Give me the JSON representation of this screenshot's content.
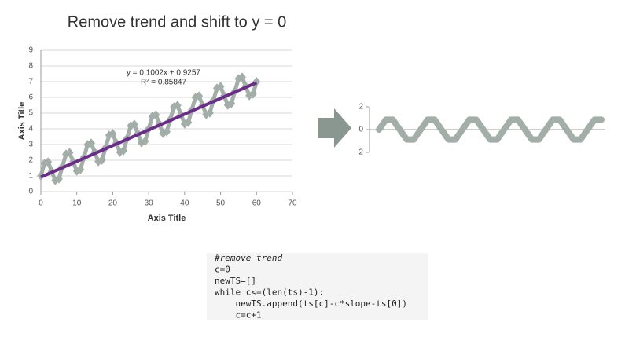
{
  "title": "Remove trend and shift to y = 0",
  "chart_data": [
    {
      "type": "scatter",
      "xlabel": "Axis Title",
      "ylabel": "Axis Title",
      "xlim": [
        0,
        70
      ],
      "ylim": [
        0,
        9
      ],
      "xticks": [
        0,
        10,
        20,
        30,
        40,
        50,
        60,
        70
      ],
      "yticks": [
        0,
        1,
        2,
        3,
        4,
        5,
        6,
        7,
        8,
        9
      ],
      "grid": true,
      "series": [
        {
          "color": "#a3aea8",
          "x": [
            0,
            1,
            2,
            3,
            4,
            5,
            6,
            7,
            8,
            9,
            10,
            11,
            12,
            13,
            14,
            15,
            16,
            17,
            18,
            19,
            20,
            21,
            22,
            23,
            24,
            25,
            26,
            27,
            28,
            29,
            30,
            31,
            32,
            33,
            34,
            35,
            36,
            37,
            38,
            39,
            40,
            41,
            42,
            43,
            44,
            45,
            46,
            47,
            48,
            49,
            50,
            51,
            52,
            53,
            54,
            55,
            56,
            57,
            58,
            59,
            60
          ],
          "values": [
            1.0,
            1.79,
            1.89,
            1.3,
            0.71,
            0.81,
            1.6,
            2.39,
            2.49,
            1.9,
            1.31,
            1.41,
            2.2,
            2.99,
            3.09,
            2.5,
            1.91,
            2.01,
            2.8,
            3.59,
            3.69,
            3.1,
            2.51,
            2.61,
            3.4,
            4.19,
            4.29,
            3.7,
            3.11,
            3.21,
            4.0,
            4.79,
            4.89,
            4.3,
            3.71,
            3.81,
            4.6,
            5.39,
            5.49,
            4.9,
            4.31,
            4.41,
            5.2,
            5.99,
            6.09,
            5.5,
            4.91,
            5.01,
            5.8,
            6.59,
            6.69,
            6.1,
            5.51,
            5.61,
            6.4,
            7.19,
            7.29,
            6.7,
            6.11,
            6.21,
            7.0
          ]
        }
      ],
      "trendline": {
        "slope": 0.1002,
        "intercept": 0.9257,
        "color": "#6a2d8a",
        "equation": "y = 0.1002x + 0.9257",
        "r2": "R² = 0.85847"
      }
    },
    {
      "type": "line",
      "xlim": [
        0,
        32
      ],
      "ylim": [
        -2,
        2
      ],
      "yticks": [
        -2,
        0,
        2
      ],
      "series": [
        {
          "color": "#a3aea8",
          "x": [
            0,
            1,
            2,
            3,
            4,
            5,
            6,
            7,
            8,
            9,
            10,
            11,
            12,
            13,
            14,
            15,
            16,
            17,
            18,
            19,
            20,
            21,
            22,
            23,
            24,
            25,
            26,
            27,
            28,
            29,
            30,
            31,
            32
          ],
          "values": [
            0,
            0.87,
            0.87,
            0,
            -0.87,
            -0.87,
            0,
            0.87,
            0.87,
            0,
            -0.87,
            -0.87,
            0,
            0.87,
            0.87,
            0,
            -0.87,
            -0.87,
            0,
            0.87,
            0.87,
            0,
            -0.87,
            -0.87,
            0,
            0.87,
            0.87,
            0,
            -0.87,
            -0.87,
            0,
            0.87,
            0.87
          ]
        }
      ]
    }
  ],
  "code": {
    "lines": [
      "#remove trend",
      "c=0",
      "newTS=[]",
      "while c<=(len(ts)-1):",
      "    newTS.append(ts[c]-c*slope-ts[0])",
      "    c=c+1"
    ]
  }
}
